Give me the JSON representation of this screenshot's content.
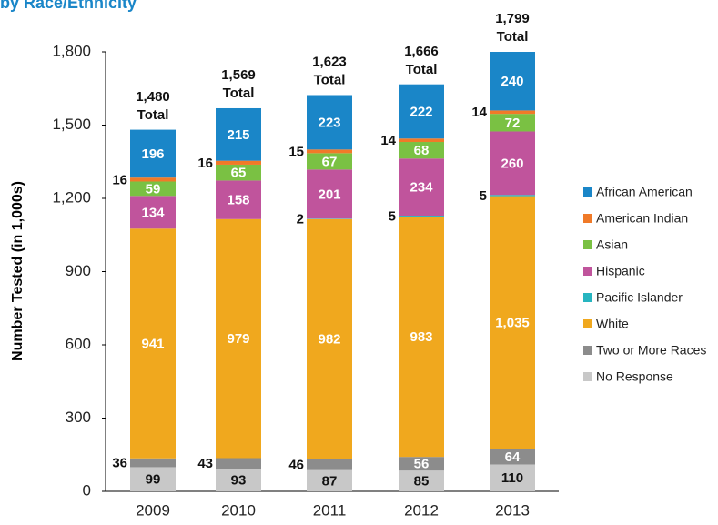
{
  "chart_data": {
    "type": "stacked_bar",
    "title": "by Race/Ethnicity",
    "y_label": "Number Tested (in 1,000s)",
    "categories": [
      "2009",
      "2010",
      "2011",
      "2012",
      "2013"
    ],
    "series": [
      {
        "name": "No Response",
        "color": "#c8c8c8",
        "values": [
          99,
          93,
          87,
          85,
          110
        ]
      },
      {
        "name": "Two or More Races",
        "color": "#8c8c8c",
        "values": [
          36,
          43,
          46,
          56,
          64
        ]
      },
      {
        "name": "White",
        "color": "#f0a81e",
        "values": [
          941,
          979,
          982,
          983,
          1035
        ],
        "value_labels": [
          "941",
          "979",
          "982",
          "983",
          "1,035"
        ]
      },
      {
        "name": "Pacific Islander",
        "color": "#27b5c0",
        "values": [
          null,
          null,
          2,
          5,
          5
        ]
      },
      {
        "name": "Hispanic",
        "color": "#c0549c",
        "values": [
          134,
          158,
          201,
          234,
          260
        ]
      },
      {
        "name": "Asian",
        "color": "#7ac143",
        "values": [
          59,
          65,
          67,
          68,
          72
        ]
      },
      {
        "name": "American Indian",
        "color": "#f07a28",
        "values": [
          16,
          16,
          15,
          14,
          14
        ]
      },
      {
        "name": "African American",
        "color": "#1a86c8",
        "values": [
          196,
          215,
          223,
          222,
          240
        ]
      }
    ],
    "totals": [
      1480,
      1569,
      1623,
      1666,
      1799
    ],
    "total_labels": [
      "1,480",
      "1,569",
      "1,623",
      "1,666",
      "1,799"
    ],
    "total_word": "Total",
    "ylim": [
      0,
      1800
    ],
    "yticks": [
      0,
      300,
      600,
      900,
      {
        "value": 1200,
        "label": "1,200"
      },
      {
        "value": 1500,
        "label": "1,500"
      },
      {
        "value": 1800,
        "label": "1,800"
      }
    ],
    "grid": false,
    "legend": "right"
  }
}
